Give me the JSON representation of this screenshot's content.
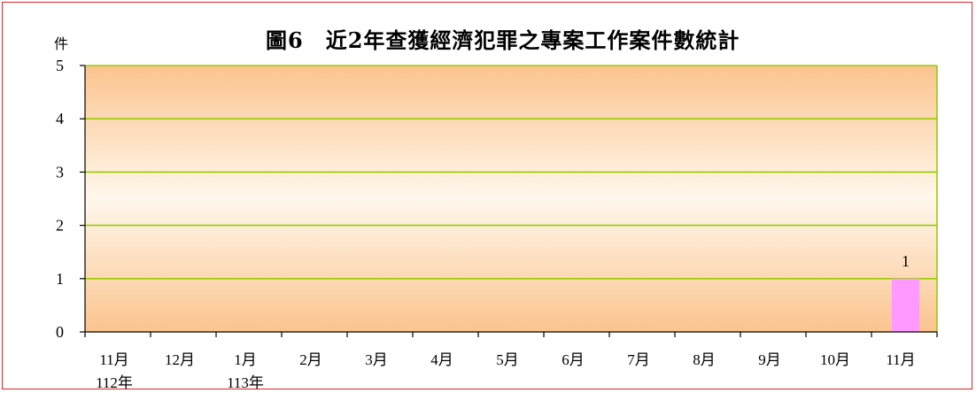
{
  "chart_data": {
    "type": "bar",
    "title": "圖6　近2年查獲經濟犯罪之專案工作案件數統計",
    "ylabel": "件",
    "ylim": [
      0,
      5
    ],
    "yticks": [
      "0",
      "1",
      "2",
      "3",
      "4",
      "5"
    ],
    "categories": [
      "11月",
      "12月",
      "1月",
      "2月",
      "3月",
      "4月",
      "5月",
      "6月",
      "7月",
      "8月",
      "9月",
      "10月",
      "11月"
    ],
    "year_labels": [
      {
        "category_index": 0,
        "label": "112年"
      },
      {
        "category_index": 2,
        "label": "113年"
      }
    ],
    "values": [
      0,
      0,
      0,
      0,
      0,
      0,
      0,
      0,
      0,
      0,
      0,
      0,
      1
    ],
    "data_labels": [
      null,
      null,
      null,
      null,
      null,
      null,
      null,
      null,
      null,
      null,
      null,
      null,
      "1"
    ],
    "bar_color": "#ff99ff",
    "plot_background": [
      "#fbc48f",
      "#fff7ec"
    ],
    "grid": true,
    "grid_color": "#99cc00",
    "axis_color": "#000000"
  }
}
